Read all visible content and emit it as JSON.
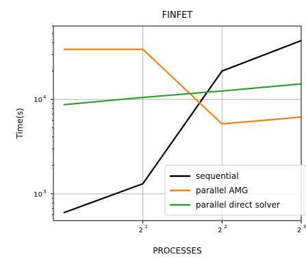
{
  "chart_data": {
    "type": "line",
    "title": "FINFET",
    "xlabel": "PROCESSES",
    "ylabel": "Time(s)",
    "x": [
      1,
      2,
      4,
      8
    ],
    "xscale": "log2",
    "yscale": "log",
    "xlim": [
      1,
      8
    ],
    "ylim": [
      520,
      60000
    ],
    "x_ticks": [
      {
        "value": 2,
        "base": "2",
        "exp": "1"
      },
      {
        "value": 4,
        "base": "2",
        "exp": "2"
      },
      {
        "value": 8,
        "base": "2",
        "exp": "3"
      }
    ],
    "y_ticks": [
      {
        "value": 1000,
        "base": "10",
        "exp": "3"
      },
      {
        "value": 10000,
        "base": "10",
        "exp": "4"
      }
    ],
    "grid": true,
    "legend_position": "bottom-right",
    "series": [
      {
        "name": "sequential",
        "color": "#000000",
        "values": [
          630,
          1280,
          20000,
          42000
        ]
      },
      {
        "name": "parallel AMG",
        "color": "#ff7f0e",
        "values": [
          34000,
          34000,
          5500,
          6500
        ]
      },
      {
        "name": "parallel direct solver",
        "color": "#2ca02c",
        "values": [
          8800,
          10500,
          12300,
          14600
        ]
      }
    ]
  }
}
